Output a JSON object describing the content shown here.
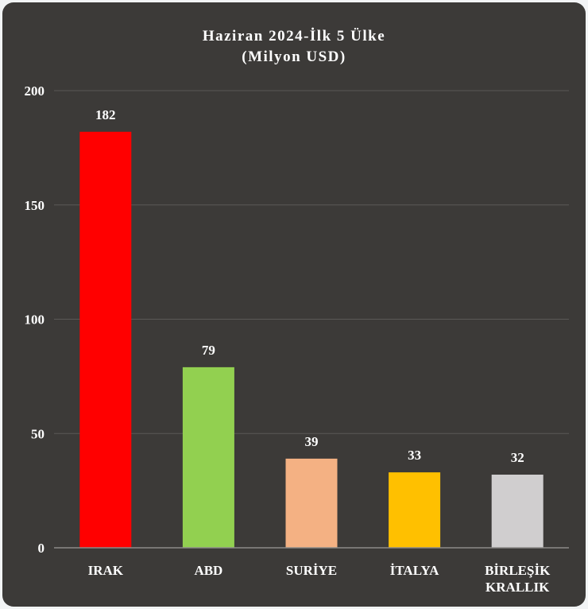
{
  "chart_data": {
    "type": "bar",
    "title_lines": [
      "Haziran 2024-İlk 5 Ülke",
      "(Milyon USD)"
    ],
    "categories": [
      [
        "IRAK"
      ],
      [
        "ABD"
      ],
      [
        "SURİYE"
      ],
      [
        "İTALYA"
      ],
      [
        "BİRLEŞİK",
        "KRALLIK"
      ]
    ],
    "values": [
      182,
      79,
      39,
      33,
      32
    ],
    "data_labels": [
      "182",
      "79",
      "39",
      "33",
      "32"
    ],
    "colors": [
      "#ff0000",
      "#92d050",
      "#f4b183",
      "#ffc000",
      "#d0cecf"
    ],
    "ylim": [
      0,
      200
    ],
    "yticks": [
      0,
      50,
      100,
      150,
      200
    ],
    "ytick_labels": [
      "0",
      "50",
      "100",
      "150",
      "200"
    ],
    "grid": true,
    "legend": "none"
  },
  "colors": {
    "background": "#3c3a38",
    "gridline": "#5a5856",
    "axis": "#8c8a88",
    "text": "#ffffff"
  }
}
